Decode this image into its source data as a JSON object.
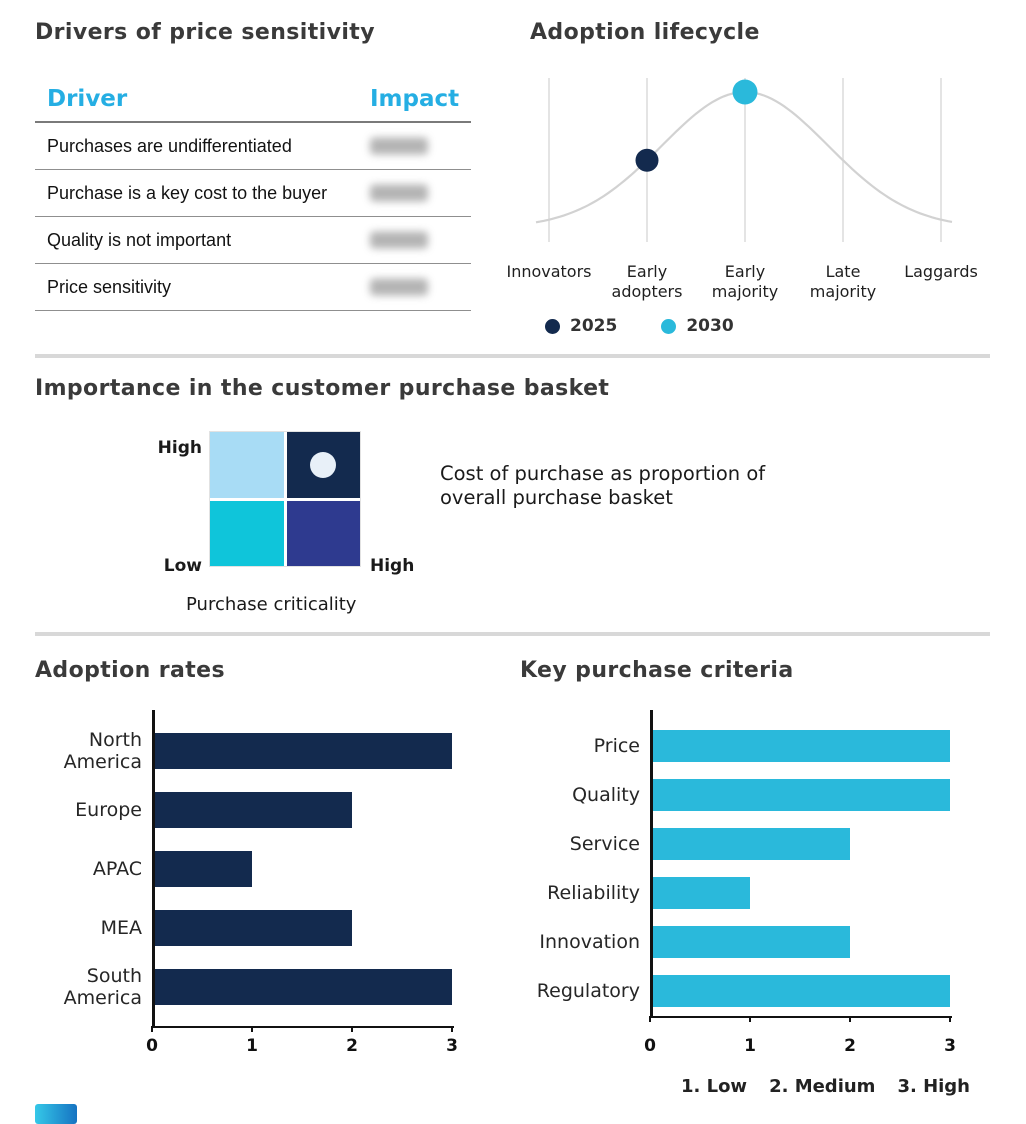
{
  "colors": {
    "navy": "#132a4e",
    "cyan": "#2ab9db",
    "header_cyan": "#25aee3",
    "light_blue": "#a8dcf5",
    "turquoise": "#0fc5da",
    "indigo": "#2e3a8f",
    "heading": "#3a3a3a",
    "grid": "#d8d8d8",
    "table_rule": "#8f8f8f",
    "header_rule": "#7a7a7a"
  },
  "price_table": {
    "title": "Drivers of price sensitivity",
    "col_driver": "Driver",
    "col_impact": "Impact",
    "rows": [
      "Purchases are undifferentiated",
      "Purchase is a key cost to the buyer",
      "Quality is not important",
      "Price sensitivity"
    ],
    "impact_redacted": true
  },
  "lifecycle": {
    "title": "Adoption lifecycle"
  },
  "basket": {
    "title": "Importance in the customer purchase basket",
    "y_top_label": "High",
    "y_bottom_label": "Low",
    "x_right_label": "High",
    "x_axis_label": "Purchase criticality",
    "annotation": "Cost of purchase as proportion of overall purchase basket"
  },
  "adoption": {
    "title": "Adoption rates"
  },
  "criteria": {
    "title": "Key purchase criteria",
    "footnote_items": [
      "1. Low",
      "2. Medium",
      "3. High"
    ]
  },
  "chart_data": [
    {
      "id": "adoption_lifecycle",
      "type": "line",
      "title": "Adoption lifecycle",
      "x": [
        "Innovators",
        "Early adopters",
        "Early majority",
        "Late majority",
        "Laggards"
      ],
      "curve": "bell",
      "grid": "vertical",
      "markers": [
        {
          "name": "2025",
          "x": "Early adopters",
          "color": "#132a4e"
        },
        {
          "name": "2030",
          "x": "Early majority",
          "color": "#2ab9db"
        }
      ],
      "legend_position": "bottom"
    },
    {
      "id": "adoption_rates",
      "type": "bar",
      "orientation": "horizontal",
      "title": "Adoption rates",
      "categories": [
        "North America",
        "Europe",
        "APAC",
        "MEA",
        "South America"
      ],
      "values": [
        3,
        2,
        1,
        2,
        3
      ],
      "xlim": [
        0,
        3
      ],
      "xticks": [
        0,
        1,
        2,
        3
      ],
      "bar_color": "#132a4e"
    },
    {
      "id": "key_purchase_criteria",
      "type": "bar",
      "orientation": "horizontal",
      "title": "Key purchase criteria",
      "categories": [
        "Price",
        "Quality",
        "Service",
        "Reliability",
        "Innovation",
        "Regulatory"
      ],
      "values": [
        3,
        3,
        2,
        1,
        2,
        3
      ],
      "xlim": [
        0,
        3
      ],
      "xticks": [
        0,
        1,
        2,
        3
      ],
      "bar_color": "#2ab9db",
      "scale_note": "1. Low  2. Medium  3. High"
    },
    {
      "id": "purchase_basket_matrix",
      "type": "heatmap",
      "title": "Importance in the customer purchase basket",
      "x_label": "Purchase criticality",
      "y_range": [
        "Low",
        "High"
      ],
      "x_max_label": "High",
      "quadrant_colors": {
        "top_left": "#a8dcf5",
        "top_right": "#132a4e",
        "bottom_left": "#0fc5da",
        "bottom_right": "#2e3a8f"
      },
      "marker": {
        "quadrant": "top_right",
        "color": "#e8f0f8"
      },
      "annotation": "Cost of purchase as proportion of overall purchase basket"
    }
  ]
}
